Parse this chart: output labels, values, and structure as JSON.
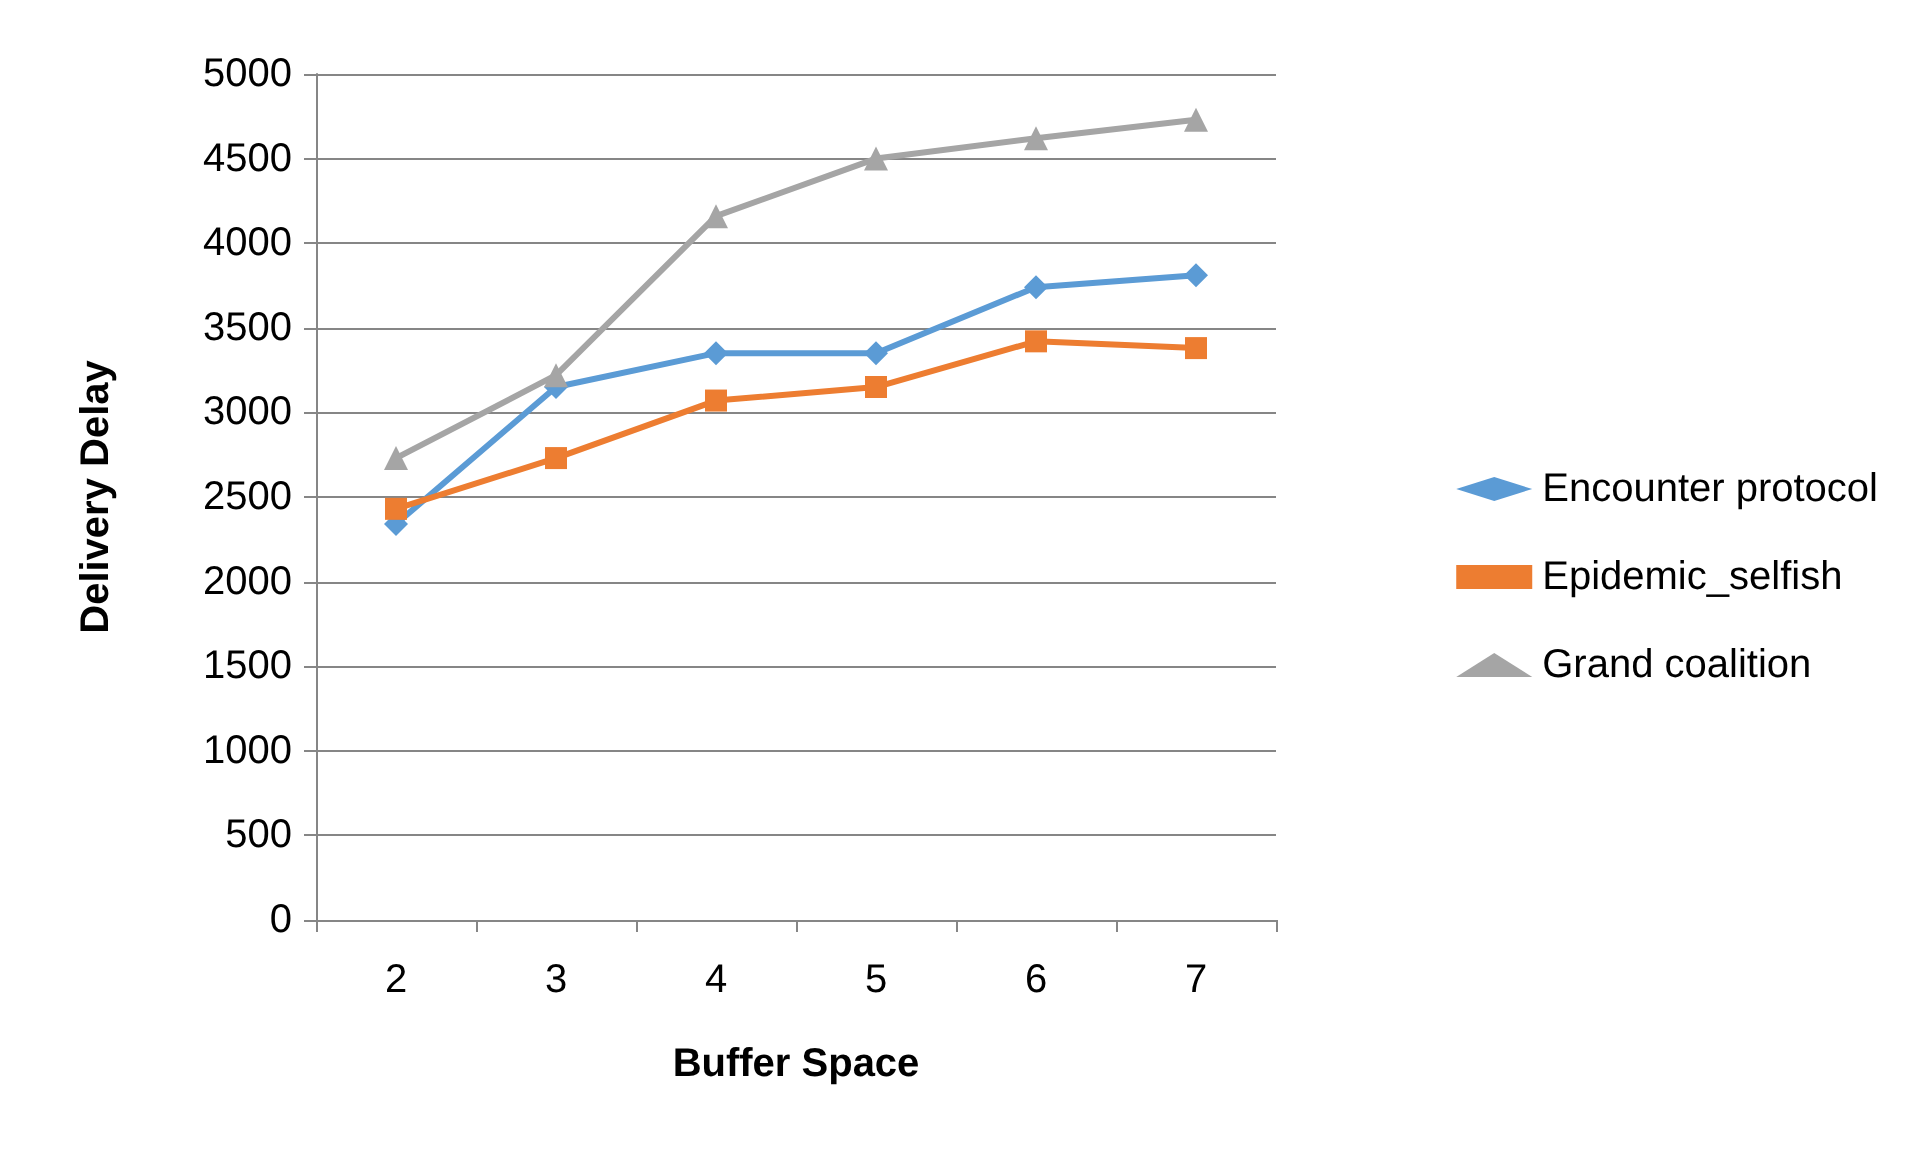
{
  "chart_data": {
    "type": "line",
    "xlabel": "Buffer Space",
    "ylabel": "Delivery Delay",
    "categories": [
      "2",
      "3",
      "4",
      "5",
      "6",
      "7"
    ],
    "series": [
      {
        "name": "Encounter protocol",
        "color": "#5b9bd5",
        "marker": "diamond",
        "values": [
          2340,
          3150,
          3350,
          3350,
          3740,
          3810
        ]
      },
      {
        "name": "Epidemic_selfish",
        "color": "#ed7d31",
        "marker": "square",
        "values": [
          2430,
          2730,
          3070,
          3150,
          3420,
          3380
        ]
      },
      {
        "name": "Grand coalition",
        "color": "#a5a5a5",
        "marker": "triangle",
        "values": [
          2730,
          3220,
          4160,
          4500,
          4620,
          4730
        ]
      }
    ],
    "ylim": [
      0,
      5000
    ],
    "yticks": [
      0,
      500,
      1000,
      1500,
      2000,
      2500,
      3000,
      3500,
      4000,
      4500,
      5000
    ],
    "grid": "y",
    "legend": "right"
  }
}
